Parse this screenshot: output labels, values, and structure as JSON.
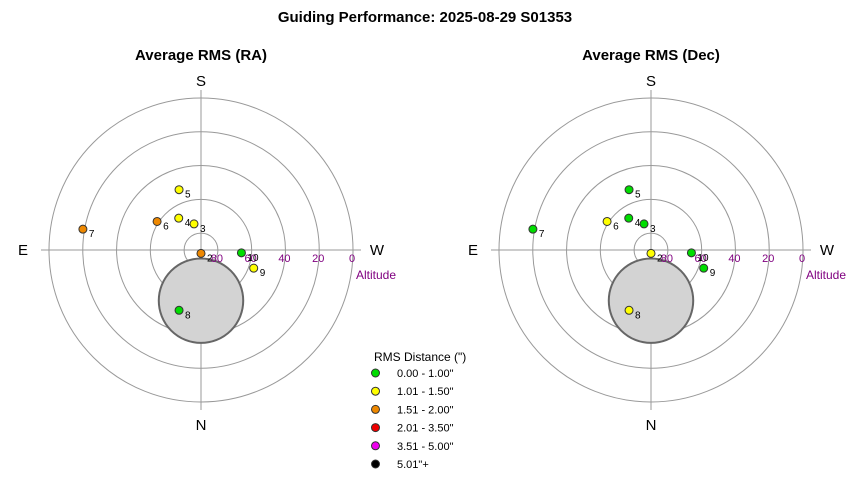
{
  "title": "Guiding Performance: 2025-08-29 S01353",
  "compass": {
    "top": "S",
    "bottom": "N",
    "left": "E",
    "right": "W"
  },
  "altitude_label": "Altitude",
  "altitude_ticks": [
    "80",
    "60",
    "40",
    "20",
    "0"
  ],
  "legend": {
    "title": "RMS Distance (\")",
    "items": [
      {
        "label": "0.00 - 1.00\"",
        "color": "#00dd00"
      },
      {
        "label": "1.01 - 1.50\"",
        "color": "#ffff00"
      },
      {
        "label": "1.51 - 2.00\"",
        "color": "#ee8800"
      },
      {
        "label": "2.01 - 3.50\"",
        "color": "#ee0000"
      },
      {
        "label": "3.51 - 5.00\"",
        "color": "#ee00ee"
      },
      {
        "label": "5.01\"+",
        "color": "#000000"
      }
    ]
  },
  "chart_data": [
    {
      "type": "scatter",
      "projection": "polar-altaz",
      "title": "Average RMS (RA)",
      "axis_range_altitude": [
        0,
        90
      ],
      "grid_altitudes": [
        0,
        20,
        40,
        60,
        80
      ],
      "mask_region": {
        "shape": "circle",
        "center_altitude": 60,
        "center_azimuth": 0,
        "radius_altitude": 25
      },
      "points": [
        {
          "label": "2",
          "azimuth": 0,
          "altitude": 88,
          "color": "#ee8800"
        },
        {
          "label": "3",
          "azimuth": 165,
          "altitude": 74,
          "color": "#ffff00"
        },
        {
          "label": "4",
          "azimuth": 145,
          "altitude": 67,
          "color": "#ffff00"
        },
        {
          "label": "5",
          "azimuth": 160,
          "altitude": 52,
          "color": "#ffff00"
        },
        {
          "label": "6",
          "azimuth": 123,
          "altitude": 59,
          "color": "#ee8800"
        },
        {
          "label": "7",
          "azimuth": 100,
          "altitude": 19,
          "color": "#ee8800"
        },
        {
          "label": "8",
          "azimuth": 20,
          "altitude": 52,
          "color": "#00dd00"
        },
        {
          "label": "9",
          "azimuth": 289,
          "altitude": 57,
          "color": "#ffff00"
        },
        {
          "label": "10",
          "azimuth": 274,
          "altitude": 66,
          "color": "#00dd00"
        }
      ]
    },
    {
      "type": "scatter",
      "projection": "polar-altaz",
      "title": "Average RMS (Dec)",
      "axis_range_altitude": [
        0,
        90
      ],
      "grid_altitudes": [
        0,
        20,
        40,
        60,
        80
      ],
      "mask_region": {
        "shape": "circle",
        "center_altitude": 60,
        "center_azimuth": 0,
        "radius_altitude": 25
      },
      "points": [
        {
          "label": "2",
          "azimuth": 0,
          "altitude": 88,
          "color": "#ffff00"
        },
        {
          "label": "3",
          "azimuth": 165,
          "altitude": 74,
          "color": "#00dd00"
        },
        {
          "label": "4",
          "azimuth": 145,
          "altitude": 67,
          "color": "#00dd00"
        },
        {
          "label": "5",
          "azimuth": 160,
          "altitude": 52,
          "color": "#00dd00"
        },
        {
          "label": "6",
          "azimuth": 123,
          "altitude": 59,
          "color": "#ffff00"
        },
        {
          "label": "7",
          "azimuth": 100,
          "altitude": 19,
          "color": "#00dd00"
        },
        {
          "label": "8",
          "azimuth": 20,
          "altitude": 52,
          "color": "#ffff00"
        },
        {
          "label": "9",
          "azimuth": 289,
          "altitude": 57,
          "color": "#00dd00"
        },
        {
          "label": "10",
          "azimuth": 274,
          "altitude": 66,
          "color": "#00dd00"
        }
      ]
    }
  ]
}
